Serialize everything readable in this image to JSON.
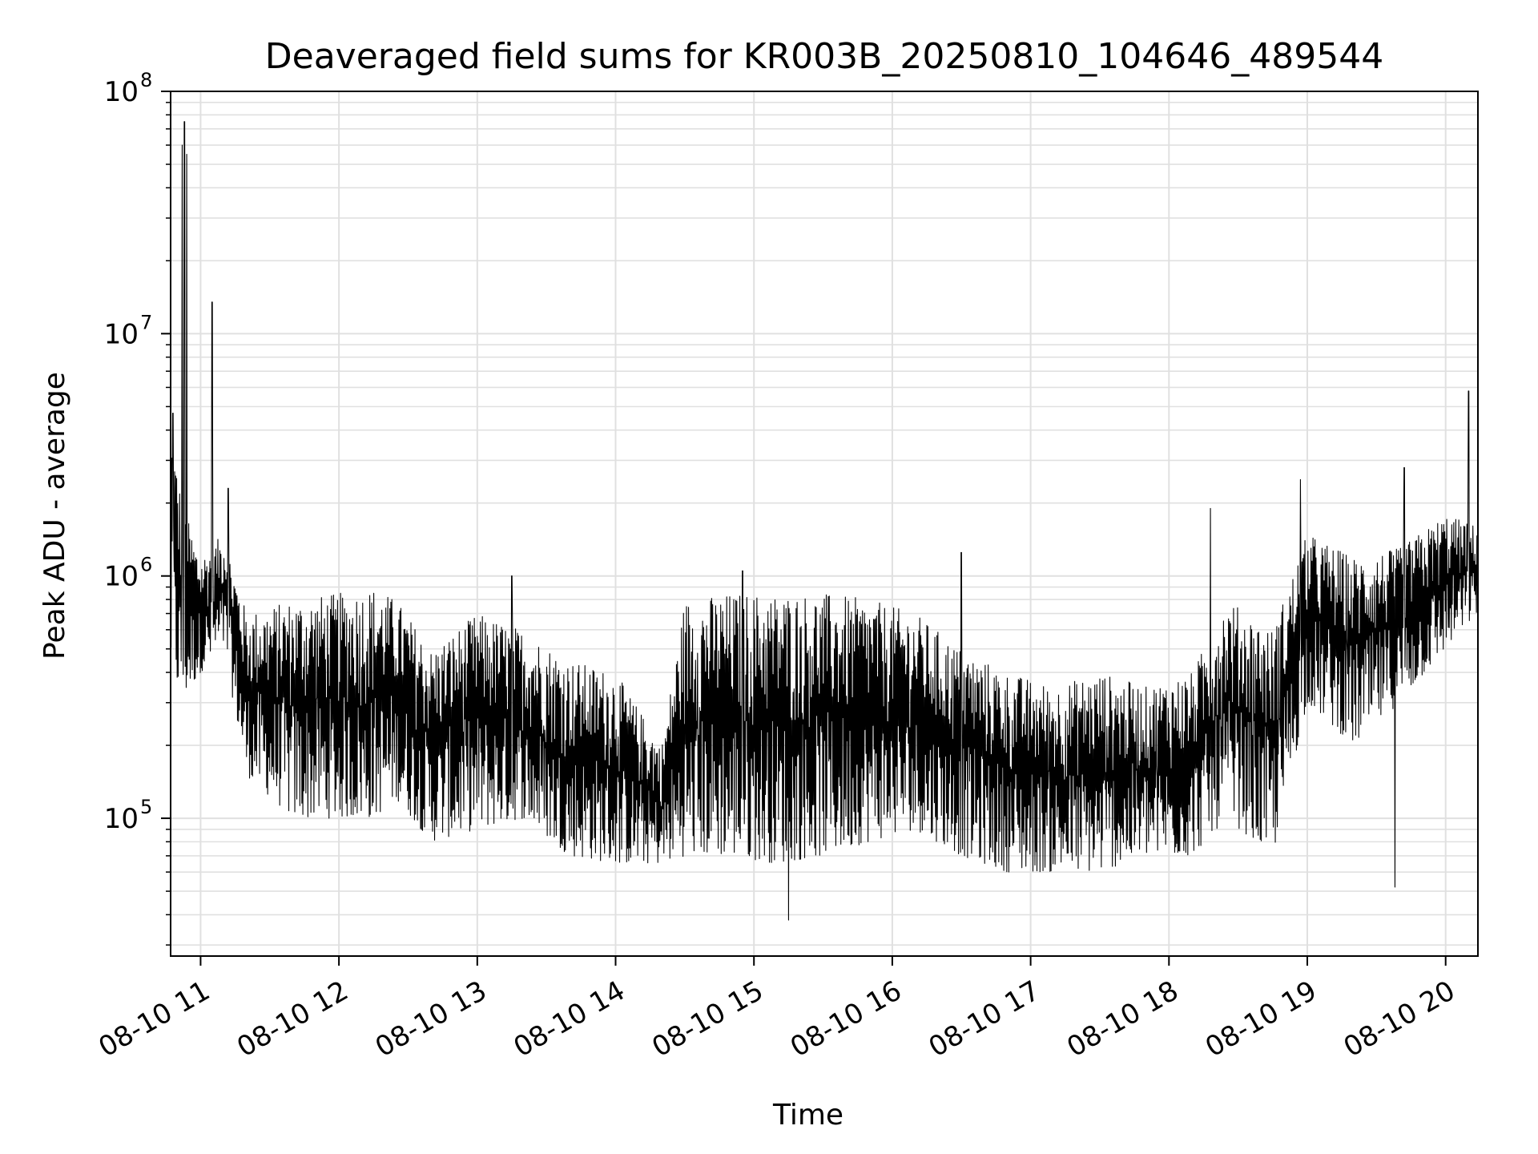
{
  "chart_data": {
    "type": "line",
    "title": "Deaveraged field sums for KR003B_20250810_104646_489544",
    "xlabel": "Time",
    "ylabel": "Peak ADU - average",
    "yscale": "log",
    "ylim": [
      27000,
      100000000
    ],
    "xlim": [
      "2025-08-10 10:47",
      "2025-08-10 20:14"
    ],
    "grid": true,
    "line_color": "#000000",
    "grid_color": "#e0e0e0",
    "x_ticks": [
      {
        "value": "2025-08-10 11:00",
        "label": "08-10 11"
      },
      {
        "value": "2025-08-10 12:00",
        "label": "08-10 12"
      },
      {
        "value": "2025-08-10 13:00",
        "label": "08-10 13"
      },
      {
        "value": "2025-08-10 14:00",
        "label": "08-10 14"
      },
      {
        "value": "2025-08-10 15:00",
        "label": "08-10 15"
      },
      {
        "value": "2025-08-10 16:00",
        "label": "08-10 16"
      },
      {
        "value": "2025-08-10 17:00",
        "label": "08-10 17"
      },
      {
        "value": "2025-08-10 18:00",
        "label": "08-10 18"
      },
      {
        "value": "2025-08-10 19:00",
        "label": "08-10 19"
      },
      {
        "value": "2025-08-10 20:00",
        "label": "08-10 20"
      }
    ],
    "y_ticks": [
      {
        "value": 100000,
        "base": "10",
        "exp": "5"
      },
      {
        "value": 1000000,
        "base": "10",
        "exp": "6"
      },
      {
        "value": 10000000,
        "base": "10",
        "exp": "7"
      },
      {
        "value": 100000000,
        "base": "10",
        "exp": "8"
      }
    ],
    "series": [
      {
        "band_segments": [
          {
            "x": "2025-08-10 10:47",
            "low": 400000,
            "high": 4500000
          },
          {
            "x": "2025-08-10 10:52",
            "low": 300000,
            "high": 2000000
          },
          {
            "x": "2025-08-10 11:00",
            "low": 400000,
            "high": 1200000
          },
          {
            "x": "2025-08-10 11:10",
            "low": 500000,
            "high": 1500000
          },
          {
            "x": "2025-08-10 11:20",
            "low": 150000,
            "high": 700000
          },
          {
            "x": "2025-08-10 11:40",
            "low": 100000,
            "high": 800000
          },
          {
            "x": "2025-08-10 12:00",
            "low": 100000,
            "high": 850000
          },
          {
            "x": "2025-08-10 12:15",
            "low": 100000,
            "high": 900000
          },
          {
            "x": "2025-08-10 12:25",
            "low": 120000,
            "high": 800000
          },
          {
            "x": "2025-08-10 12:40",
            "low": 80000,
            "high": 500000
          },
          {
            "x": "2025-08-10 13:00",
            "low": 90000,
            "high": 700000
          },
          {
            "x": "2025-08-10 13:20",
            "low": 100000,
            "high": 600000
          },
          {
            "x": "2025-08-10 13:40",
            "low": 70000,
            "high": 450000
          },
          {
            "x": "2025-08-10 14:00",
            "low": 65000,
            "high": 400000
          },
          {
            "x": "2025-08-10 14:20",
            "low": 65000,
            "high": 200000
          },
          {
            "x": "2025-08-10 14:30",
            "low": 70000,
            "high": 800000
          },
          {
            "x": "2025-08-10 14:50",
            "low": 70000,
            "high": 850000
          },
          {
            "x": "2025-08-10 15:10",
            "low": 65000,
            "high": 850000
          },
          {
            "x": "2025-08-10 15:30",
            "low": 70000,
            "high": 850000
          },
          {
            "x": "2025-08-10 15:50",
            "low": 80000,
            "high": 800000
          },
          {
            "x": "2025-08-10 16:10",
            "low": 90000,
            "high": 700000
          },
          {
            "x": "2025-08-10 16:30",
            "low": 70000,
            "high": 500000
          },
          {
            "x": "2025-08-10 16:50",
            "low": 60000,
            "high": 400000
          },
          {
            "x": "2025-08-10 17:10",
            "low": 60000,
            "high": 350000
          },
          {
            "x": "2025-08-10 17:30",
            "low": 60000,
            "high": 400000
          },
          {
            "x": "2025-08-10 17:50",
            "low": 70000,
            "high": 350000
          },
          {
            "x": "2025-08-10 18:10",
            "low": 70000,
            "high": 400000
          },
          {
            "x": "2025-08-10 18:25",
            "low": 100000,
            "high": 800000
          },
          {
            "x": "2025-08-10 18:45",
            "low": 70000,
            "high": 600000
          },
          {
            "x": "2025-08-10 19:00",
            "low": 300000,
            "high": 1500000
          },
          {
            "x": "2025-08-10 19:20",
            "low": 200000,
            "high": 1200000
          },
          {
            "x": "2025-08-10 19:40",
            "low": 300000,
            "high": 1300000
          },
          {
            "x": "2025-08-10 20:00",
            "low": 500000,
            "high": 1800000
          },
          {
            "x": "2025-08-10 20:14",
            "low": 700000,
            "high": 1600000
          }
        ],
        "spikes": [
          {
            "x": "2025-08-10 10:48",
            "value": 4700000
          },
          {
            "x": "2025-08-10 10:52",
            "value": 60000000
          },
          {
            "x": "2025-08-10 10:53",
            "value": 75000000
          },
          {
            "x": "2025-08-10 10:54",
            "value": 55000000
          },
          {
            "x": "2025-08-10 11:05",
            "value": 13500000
          },
          {
            "x": "2025-08-10 11:12",
            "value": 2300000
          },
          {
            "x": "2025-08-10 13:15",
            "value": 1000000
          },
          {
            "x": "2025-08-10 14:55",
            "value": 1050000
          },
          {
            "x": "2025-08-10 15:15",
            "value": 38000
          },
          {
            "x": "2025-08-10 16:30",
            "value": 1250000
          },
          {
            "x": "2025-08-10 18:18",
            "value": 1900000
          },
          {
            "x": "2025-08-10 18:57",
            "value": 2500000
          },
          {
            "x": "2025-08-10 19:38",
            "value": 52000
          },
          {
            "x": "2025-08-10 19:42",
            "value": 2800000
          },
          {
            "x": "2025-08-10 20:10",
            "value": 5800000
          }
        ]
      }
    ]
  }
}
